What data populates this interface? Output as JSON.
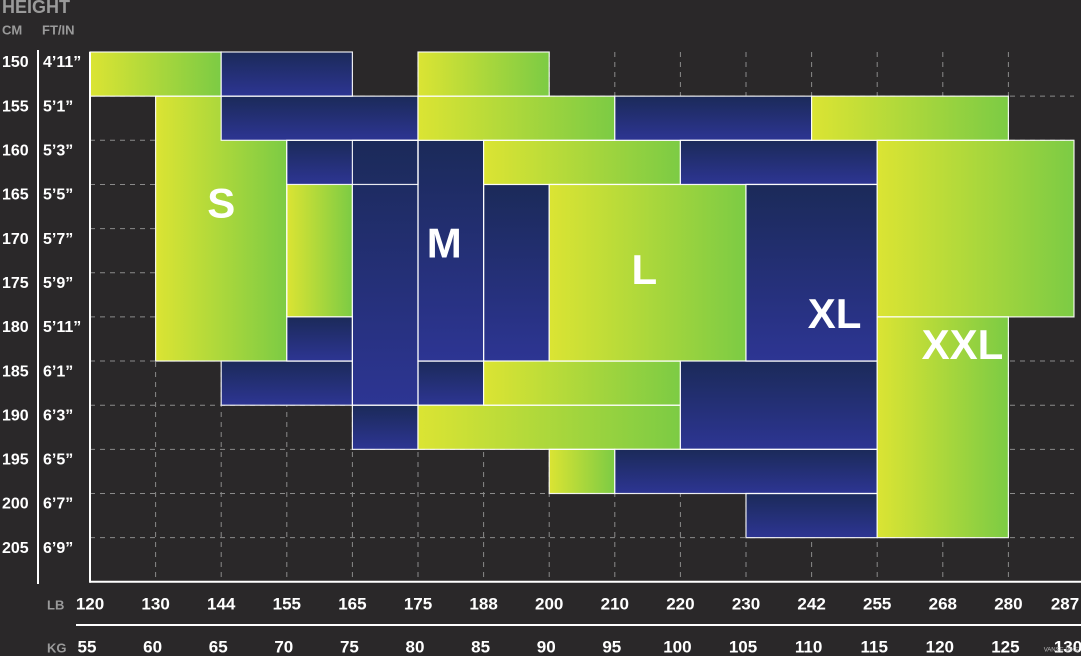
{
  "chart_data": {
    "type": "heatmap",
    "title": "",
    "y_header": "HEIGHT",
    "y_units": [
      "CM",
      "FT/IN"
    ],
    "cm": [
      "150",
      "155",
      "160",
      "165",
      "170",
      "175",
      "180",
      "185",
      "190",
      "195",
      "200",
      "205"
    ],
    "ftin": [
      "4’11”",
      "5’1”",
      "5’3”",
      "5’5”",
      "5’7”",
      "5’9”",
      "5’11”",
      "6’1”",
      "6’3”",
      "6’5”",
      "6’7”",
      "6’9”"
    ],
    "x_unit_lb": "LB",
    "lb": [
      "120",
      "130",
      "144",
      "155",
      "165",
      "175",
      "188",
      "200",
      "210",
      "220",
      "230",
      "242",
      "255",
      "268",
      "280",
      "287"
    ],
    "x_unit_kg": "KG",
    "kg": [
      "55",
      "60",
      "65",
      "70",
      "75",
      "80",
      "85",
      "90",
      "95",
      "100",
      "105",
      "110",
      "115",
      "120",
      "125",
      "130"
    ],
    "watermark": "VANSE BIKE",
    "sizes": [
      {
        "name": "S",
        "label": "S",
        "family": "lime",
        "segments": [
          {
            "cm": [
              150,
              155
            ],
            "lb": [
              120,
              144
            ]
          },
          {
            "cm": [
              155,
              185
            ],
            "lb": [
              130,
              155
            ]
          },
          {
            "cm": [
              160,
              180
            ],
            "lb": [
              155,
              165
            ]
          }
        ]
      },
      {
        "name": "M",
        "label": "M",
        "family": "navy",
        "segments": [
          {
            "cm": [
              150,
              155
            ],
            "lb": [
              144,
              165
            ]
          },
          {
            "cm": [
              155,
              160
            ],
            "lb": [
              144,
              175
            ]
          },
          {
            "cm": [
              160,
              165
            ],
            "lb": [
              155,
              175
            ]
          },
          {
            "cm": [
              160,
              190
            ],
            "lb": [
              165,
              175
            ]
          },
          {
            "cm": [
              160,
              185
            ],
            "lb": [
              175,
              188
            ]
          },
          {
            "cm": [
              165,
              185
            ],
            "lb": [
              188,
              200
            ]
          },
          {
            "cm": [
              180,
              185
            ],
            "lb": [
              155,
              165
            ]
          },
          {
            "cm": [
              185,
              190
            ],
            "lb": [
              144,
              165
            ]
          },
          {
            "cm": [
              185,
              190
            ],
            "lb": [
              175,
              188
            ]
          },
          {
            "cm": [
              190,
              195
            ],
            "lb": [
              165,
              175
            ]
          }
        ]
      },
      {
        "name": "L",
        "label": "L",
        "family": "lime",
        "segments": [
          {
            "cm": [
              150,
              155
            ],
            "lb": [
              175,
              200
            ]
          },
          {
            "cm": [
              155,
              160
            ],
            "lb": [
              175,
              210
            ]
          },
          {
            "cm": [
              160,
              165
            ],
            "lb": [
              188,
              220
            ]
          },
          {
            "cm": [
              165,
              185
            ],
            "lb": [
              200,
              230
            ]
          },
          {
            "cm": [
              185,
              190
            ],
            "lb": [
              188,
              220
            ]
          },
          {
            "cm": [
              190,
              195
            ],
            "lb": [
              175,
              220
            ]
          },
          {
            "cm": [
              195,
              200
            ],
            "lb": [
              200,
              210
            ]
          }
        ]
      },
      {
        "name": "XL",
        "label": "XL",
        "family": "navy",
        "segments": [
          {
            "cm": [
              155,
              160
            ],
            "lb": [
              210,
              242
            ]
          },
          {
            "cm": [
              160,
              165
            ],
            "lb": [
              220,
              255
            ]
          },
          {
            "cm": [
              165,
              185
            ],
            "lb": [
              230,
              255
            ]
          },
          {
            "cm": [
              185,
              195
            ],
            "lb": [
              220,
              255
            ]
          },
          {
            "cm": [
              195,
              200
            ],
            "lb": [
              210,
              255
            ]
          },
          {
            "cm": [
              200,
              205
            ],
            "lb": [
              230,
              255
            ]
          }
        ]
      },
      {
        "name": "XXL",
        "label": "XXL",
        "family": "lime",
        "segments": [
          {
            "cm": [
              155,
              160
            ],
            "lb": [
              242,
              280
            ]
          },
          {
            "cm": [
              160,
              180
            ],
            "lb": [
              255,
              287
            ]
          },
          {
            "cm": [
              180,
              205
            ],
            "lb": [
              255,
              280
            ]
          }
        ]
      }
    ],
    "colors": {
      "background": "#2a2829",
      "grid": "#8a8a8a",
      "axis": "#ffffff",
      "lime_left": "#dbe433",
      "lime_right": "#7ccb44",
      "navy_top": "#1b2a59",
      "navy_bottom": "#2d3593",
      "label": "#ffffff",
      "header_text": "#9a9a9a",
      "tick_text": "#ffffff"
    },
    "grid": true,
    "legend": "none"
  }
}
